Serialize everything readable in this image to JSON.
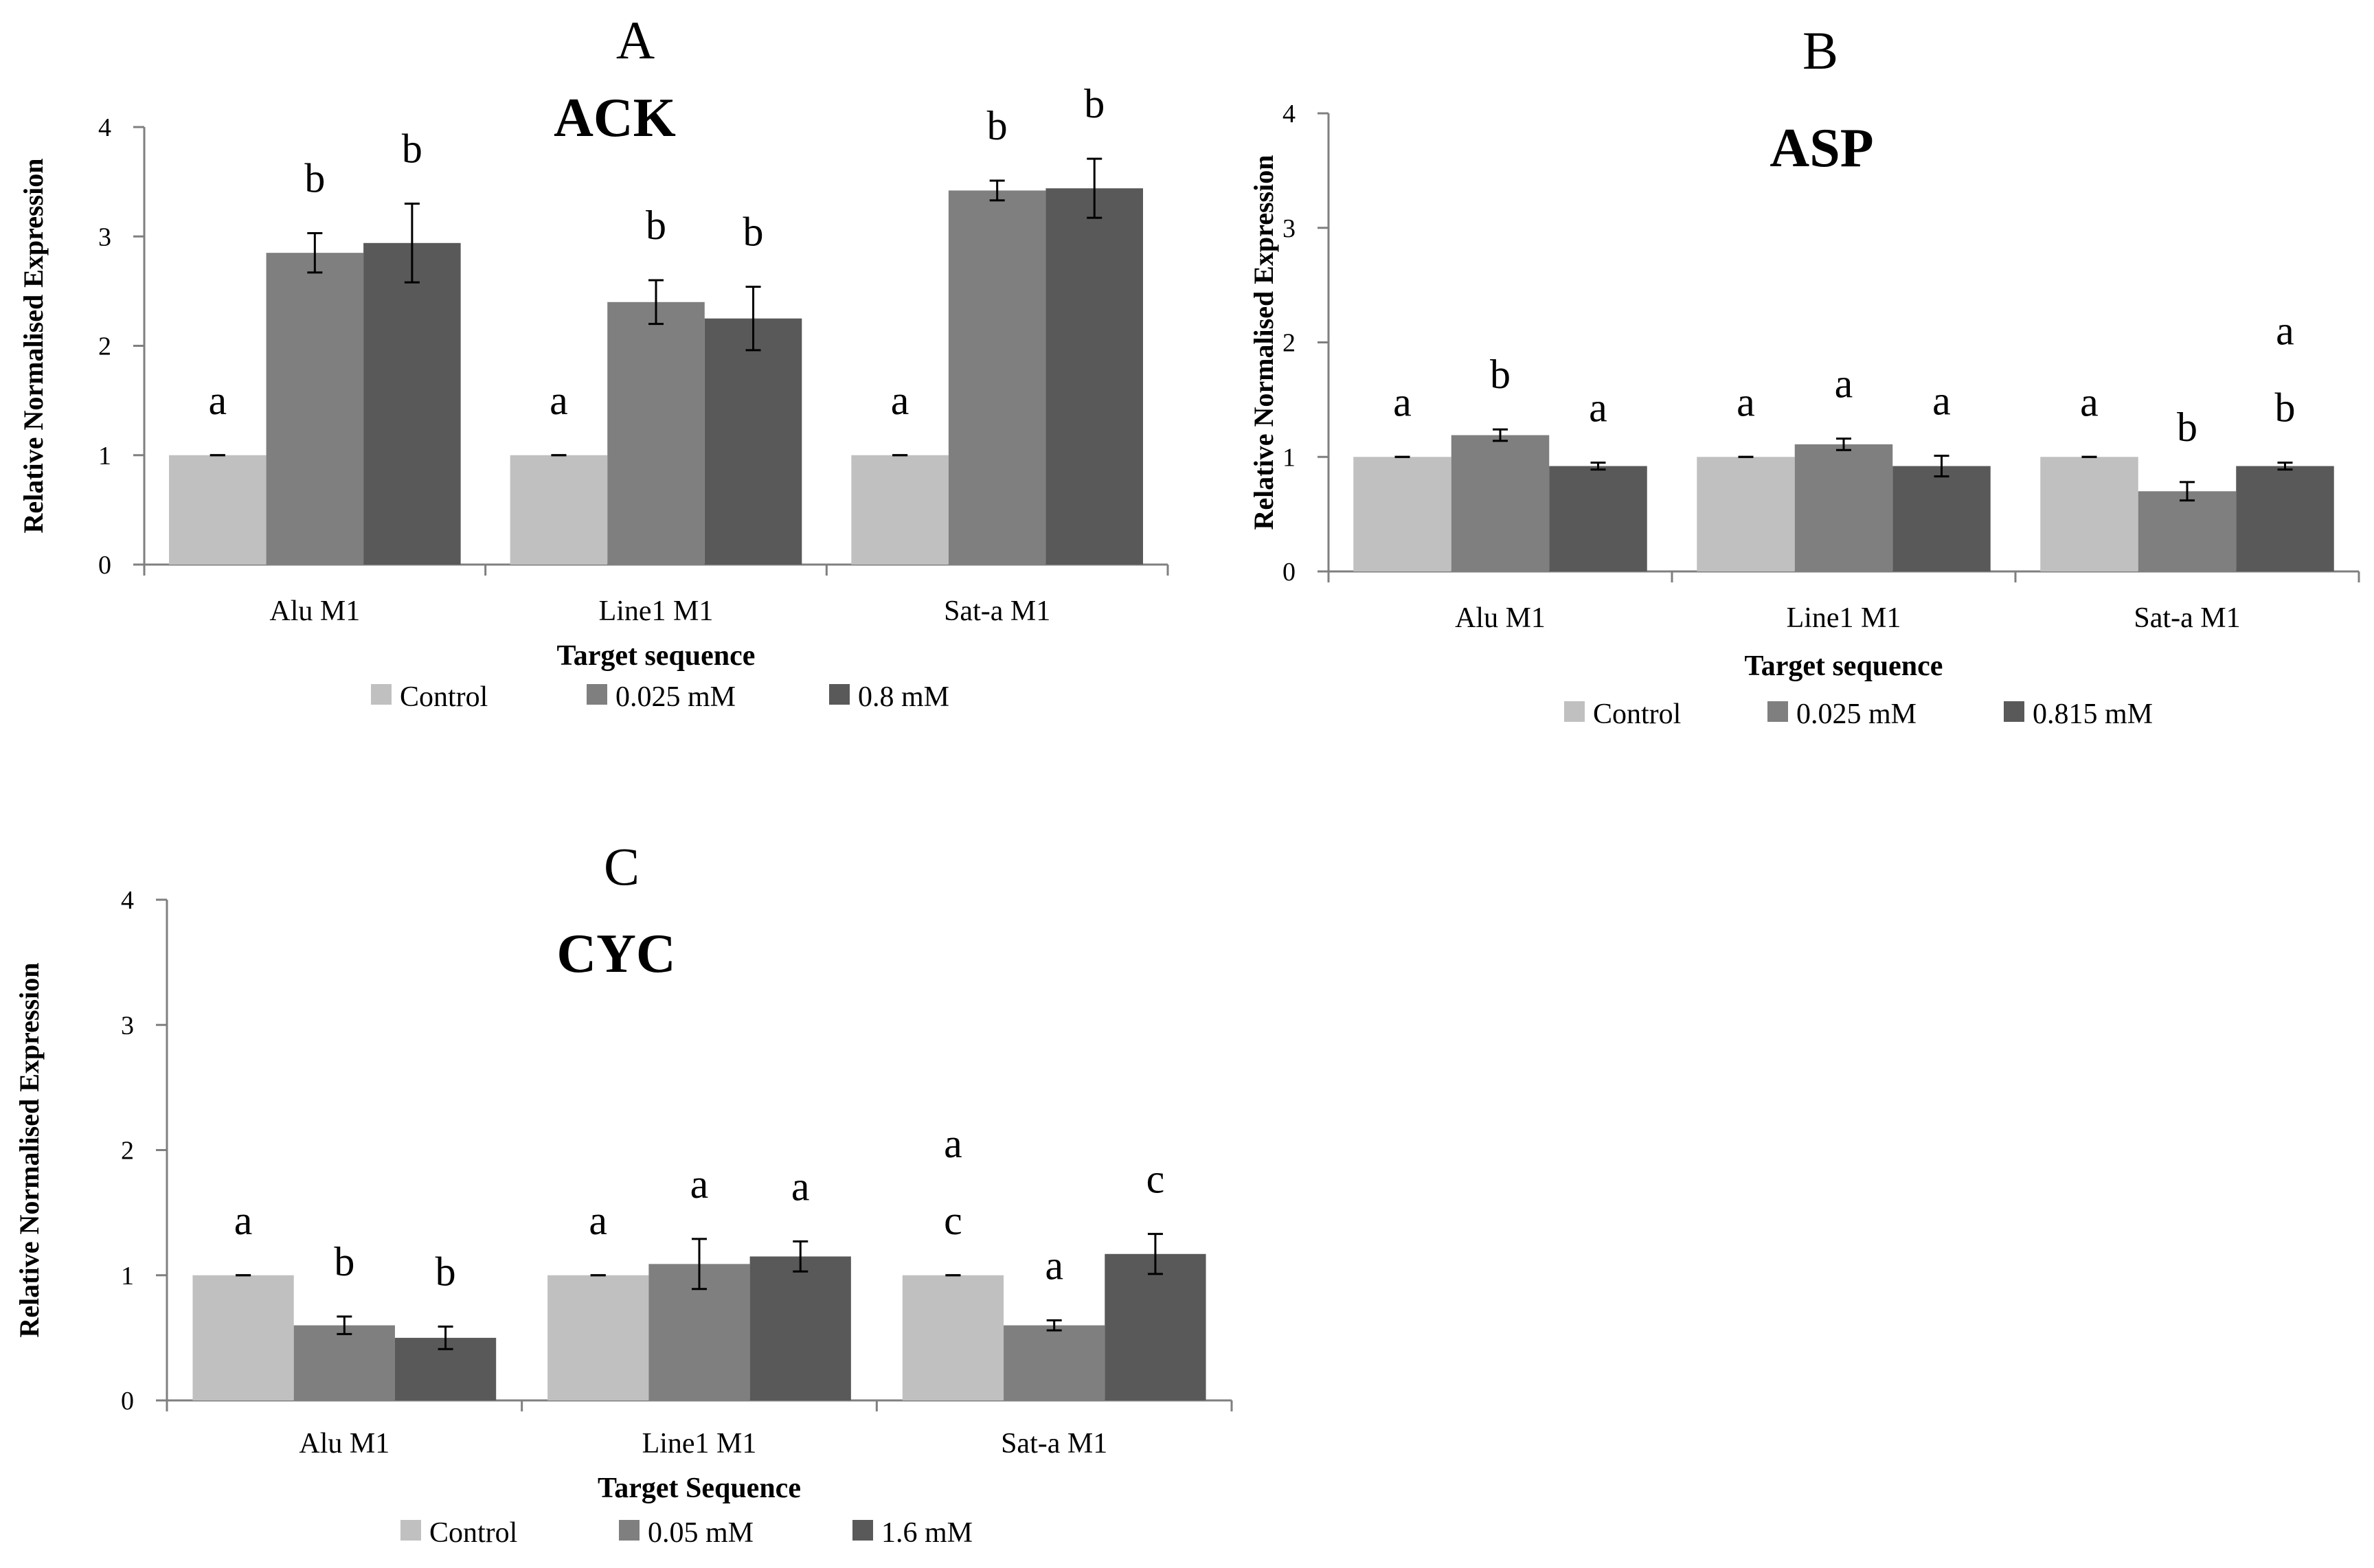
{
  "colors": {
    "control": "#c0c0c0",
    "low": "#7f7f7f",
    "high": "#595959",
    "axis": "#7f7f7f",
    "error_bar": "#000000"
  },
  "chart_data": [
    {
      "type": "bar",
      "panel_letter": "A",
      "title": "ACK",
      "xlabel": "Target sequence",
      "ylabel": "Relative  Normalised Expression",
      "ylim": [
        0,
        4
      ],
      "yticks": [
        "0",
        "1",
        "2",
        "3",
        "4"
      ],
      "grid": false,
      "legend_position": "bottom",
      "categories": [
        "Alu M1",
        "Line1 M1",
        "Sat-a M1"
      ],
      "series": [
        {
          "name": "Control",
          "color_key": "control",
          "values": [
            1.0,
            1.0,
            1.0
          ],
          "errors": [
            0.0,
            0.0,
            0.0
          ],
          "labels": [
            [
              "a"
            ],
            [
              "a"
            ],
            [
              "a"
            ]
          ]
        },
        {
          "name": "0.025 mM",
          "color_key": "low",
          "values": [
            2.85,
            2.4,
            3.42
          ],
          "errors": [
            0.18,
            0.2,
            0.09
          ],
          "labels": [
            [
              "b"
            ],
            [
              "b"
            ],
            [
              "b"
            ]
          ]
        },
        {
          "name": "0.8 mM",
          "color_key": "high",
          "values": [
            2.94,
            2.25,
            3.44
          ],
          "errors": [
            0.36,
            0.29,
            0.27
          ],
          "labels": [
            [
              "b"
            ],
            [
              "b"
            ],
            [
              "b"
            ]
          ]
        }
      ]
    },
    {
      "type": "bar",
      "panel_letter": "B",
      "title": "ASP",
      "xlabel": "Target sequence",
      "ylabel": "Relative  Normalised Expression",
      "ylim": [
        0,
        4
      ],
      "yticks": [
        "0",
        "1",
        "2",
        "3",
        "4"
      ],
      "grid": false,
      "legend_position": "bottom",
      "categories": [
        "Alu M1",
        "Line1 M1",
        "Sat-a M1"
      ],
      "series": [
        {
          "name": "Control",
          "color_key": "control",
          "values": [
            1.0,
            1.0,
            1.0
          ],
          "errors": [
            0.0,
            0.0,
            0.0
          ],
          "labels": [
            [
              "a"
            ],
            [
              "a"
            ],
            [
              "a"
            ]
          ]
        },
        {
          "name": "0.025 mM",
          "color_key": "low",
          "values": [
            1.19,
            1.11,
            0.7
          ],
          "errors": [
            0.05,
            0.05,
            0.08
          ],
          "labels": [
            [
              "b"
            ],
            [
              "a"
            ],
            [
              "b"
            ]
          ]
        },
        {
          "name": "0.815 mM",
          "color_key": "high",
          "values": [
            0.92,
            0.92,
            0.92
          ],
          "errors": [
            0.03,
            0.09,
            0.03
          ],
          "labels": [
            [
              "a"
            ],
            [
              "a"
            ],
            [
              "b",
              "a"
            ]
          ]
        }
      ]
    },
    {
      "type": "bar",
      "panel_letter": "C",
      "title": "CYC",
      "xlabel": "Target Sequence",
      "ylabel": "Relative  Normalised Expression",
      "ylim": [
        0,
        4
      ],
      "yticks": [
        "0",
        "1",
        "2",
        "3",
        "4"
      ],
      "grid": false,
      "legend_position": "bottom",
      "categories": [
        "Alu M1",
        "Line1 M1",
        "Sat-a M1"
      ],
      "series": [
        {
          "name": "Control",
          "color_key": "control",
          "values": [
            1.0,
            1.0,
            1.0
          ],
          "errors": [
            0.0,
            0.0,
            0.0
          ],
          "labels": [
            [
              "a"
            ],
            [
              "a"
            ],
            [
              "c",
              "a"
            ]
          ]
        },
        {
          "name": "0.05 mM",
          "color_key": "low",
          "values": [
            0.6,
            1.09,
            0.6
          ],
          "errors": [
            0.07,
            0.2,
            0.04
          ],
          "labels": [
            [
              "b"
            ],
            [
              "a"
            ],
            [
              "a"
            ]
          ]
        },
        {
          "name": "1.6 mM",
          "color_key": "high",
          "values": [
            0.5,
            1.15,
            1.17
          ],
          "errors": [
            0.09,
            0.12,
            0.16
          ],
          "labels": [
            [
              "b"
            ],
            [
              "a"
            ],
            [
              "c"
            ]
          ]
        }
      ]
    }
  ]
}
